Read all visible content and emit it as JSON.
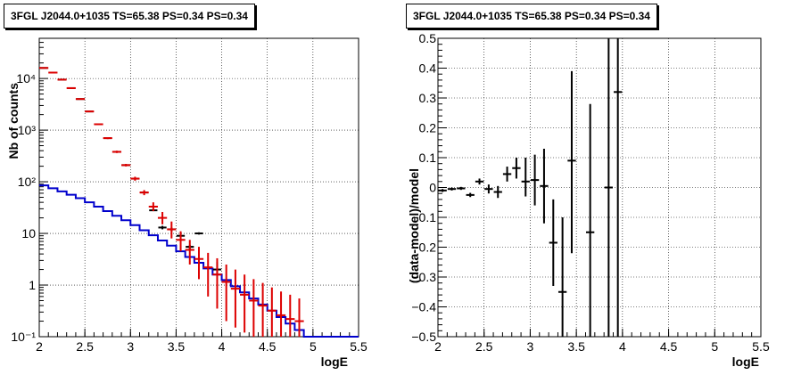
{
  "chart_data": [
    {
      "type": "step-line-errorbar",
      "title": "3FGL J2044.0+1035 TS=65.38 PS=0.34 PS=0.34",
      "xlabel": "logE",
      "ylabel": "Nb of counts",
      "xlim": [
        2,
        5.5
      ],
      "ylim": [
        0.1,
        60000
      ],
      "yscale": "log",
      "grid": true,
      "x_ticks": [
        "2",
        "2.5",
        "3",
        "3.5",
        "4",
        "4.5",
        "5",
        "5.5"
      ],
      "y_ticks": [
        {
          "value": 0.1,
          "label": "10⁻¹"
        },
        {
          "value": 1,
          "label": "1"
        },
        {
          "value": 10,
          "label": "10"
        },
        {
          "value": 100,
          "label": "10²"
        },
        {
          "value": 1000,
          "label": "10³"
        },
        {
          "value": 10000,
          "label": "10⁴"
        }
      ],
      "bin_edges": [
        2.0,
        2.1,
        2.2,
        2.3,
        2.4,
        2.5,
        2.6,
        2.7,
        2.8,
        2.9,
        3.0,
        3.1,
        3.2,
        3.3,
        3.4,
        3.5,
        3.6,
        3.7,
        3.8,
        3.9,
        4.0,
        4.1,
        4.2,
        4.3,
        4.4,
        4.5,
        4.6,
        4.7,
        4.8,
        4.9,
        5.0,
        5.1,
        5.2,
        5.3,
        5.4,
        5.5
      ],
      "series": [
        {
          "role": "source-model-step",
          "color": "#0000cc",
          "values": [
            85,
            75,
            65,
            56,
            48,
            40,
            33,
            27,
            22,
            18,
            14.5,
            11.5,
            9.2,
            7.3,
            5.8,
            4.5,
            3.5,
            2.7,
            2.1,
            1.6,
            1.25,
            0.95,
            0.72,
            0.55,
            0.42,
            0.32,
            0.24,
            0.18,
            0.135,
            0.1,
            0.1,
            0.1,
            0.1,
            0.1,
            0.1
          ]
        },
        {
          "role": "model-total",
          "color": "#dd0000",
          "x": [
            2.05,
            2.15,
            2.25,
            2.35,
            2.45,
            2.55,
            2.65,
            2.75,
            2.85,
            2.95,
            3.05,
            3.15,
            3.25,
            3.35,
            3.45,
            3.55,
            3.65,
            3.75,
            3.85,
            3.95,
            4.05,
            4.15,
            4.25,
            4.35,
            4.45,
            4.55,
            4.65,
            4.75,
            4.85
          ],
          "y": [
            16000,
            13000,
            9500,
            6500,
            4000,
            2300,
            1300,
            700,
            380,
            210,
            115,
            62,
            33,
            20,
            12,
            7.5,
            4.8,
            3.2,
            2.2,
            1.6,
            1.15,
            0.85,
            0.65,
            0.5,
            0.4,
            0.32,
            0.26,
            0.22,
            0.2
          ],
          "ylo": [
            15500,
            12600,
            9200,
            6300,
            3880,
            2220,
            1250,
            670,
            360,
            198,
            105,
            55,
            27,
            15,
            8,
            4.5,
            2.5,
            1.3,
            0.6,
            0.35,
            0.2,
            0.15,
            0.12,
            0.1,
            0.1,
            0.1,
            0.1,
            0.1,
            0.1
          ],
          "yhi": [
            16500,
            13400,
            9800,
            6700,
            4120,
            2380,
            1350,
            730,
            400,
            222,
            125,
            69,
            40,
            26,
            17,
            11,
            7.5,
            5.5,
            4.2,
            3.3,
            2.5,
            2.0,
            1.6,
            1.3,
            1.1,
            0.9,
            0.75,
            0.65,
            0.55
          ]
        },
        {
          "role": "data",
          "color": "#000000",
          "x": [
            2.05,
            2.15,
            2.25,
            2.35,
            2.45,
            2.55,
            2.65,
            2.75,
            2.85,
            2.95,
            3.05,
            3.15,
            3.25,
            3.35,
            3.45,
            3.55,
            3.65,
            3.75,
            3.95
          ],
          "y": [
            16000,
            13000,
            9500,
            6500,
            4000,
            2300,
            1300,
            700,
            380,
            210,
            115,
            62,
            28,
            13,
            12,
            9,
            5.5,
            10,
            2
          ],
          "ylo": [
            15800,
            12800,
            9400,
            6400,
            3950,
            2270,
            1280,
            690,
            375,
            207,
            113,
            61,
            27,
            12,
            11,
            8.5,
            5,
            9.5,
            1.6
          ],
          "yhi": [
            16200,
            13200,
            9600,
            6600,
            4050,
            2330,
            1320,
            710,
            385,
            213,
            117,
            63,
            29,
            14,
            13,
            9.5,
            6,
            10.5,
            2.8
          ]
        }
      ]
    },
    {
      "type": "errorbar",
      "title": "3FGL J2044.0+1035 TS=65.38 PS=0.34 PS=0.34",
      "xlabel": "logE",
      "ylabel": "(data-model)/model",
      "xlim": [
        2,
        5.5
      ],
      "ylim": [
        -0.5,
        0.5
      ],
      "grid": true,
      "x_ticks": [
        "2",
        "2.5",
        "3",
        "3.5",
        "4",
        "4.5",
        "5",
        "5.5"
      ],
      "y_ticks": [
        "−0.5",
        "−0.4",
        "−0.3",
        "−0.2",
        "−0.1",
        "0",
        "0.1",
        "0.2",
        "0.3",
        "0.4",
        "0.5"
      ],
      "points": {
        "x": [
          2.05,
          2.15,
          2.25,
          2.35,
          2.45,
          2.55,
          2.65,
          2.75,
          2.85,
          2.95,
          3.05,
          3.15,
          3.25,
          3.35,
          3.45,
          3.65,
          3.85,
          3.95
        ],
        "y": [
          -0.01,
          -0.005,
          -0.003,
          -0.025,
          0.02,
          -0.005,
          -0.015,
          0.045,
          0.065,
          0.02,
          0.025,
          0.005,
          -0.185,
          -0.35,
          0.09,
          -0.15,
          0.0,
          0.32
        ],
        "ylo": [
          -0.015,
          -0.01,
          -0.008,
          -0.032,
          0.01,
          -0.02,
          -0.035,
          0.02,
          0.03,
          -0.03,
          -0.06,
          -0.12,
          -0.33,
          -0.52,
          -0.22,
          -0.55,
          -0.55,
          -0.55
        ],
        "yhi": [
          -0.005,
          0.0,
          0.002,
          -0.018,
          0.03,
          0.01,
          0.005,
          0.07,
          0.1,
          0.1,
          0.11,
          0.13,
          -0.04,
          -0.1,
          0.39,
          0.28,
          0.55,
          0.55
        ],
        "color": "#000000"
      }
    }
  ]
}
